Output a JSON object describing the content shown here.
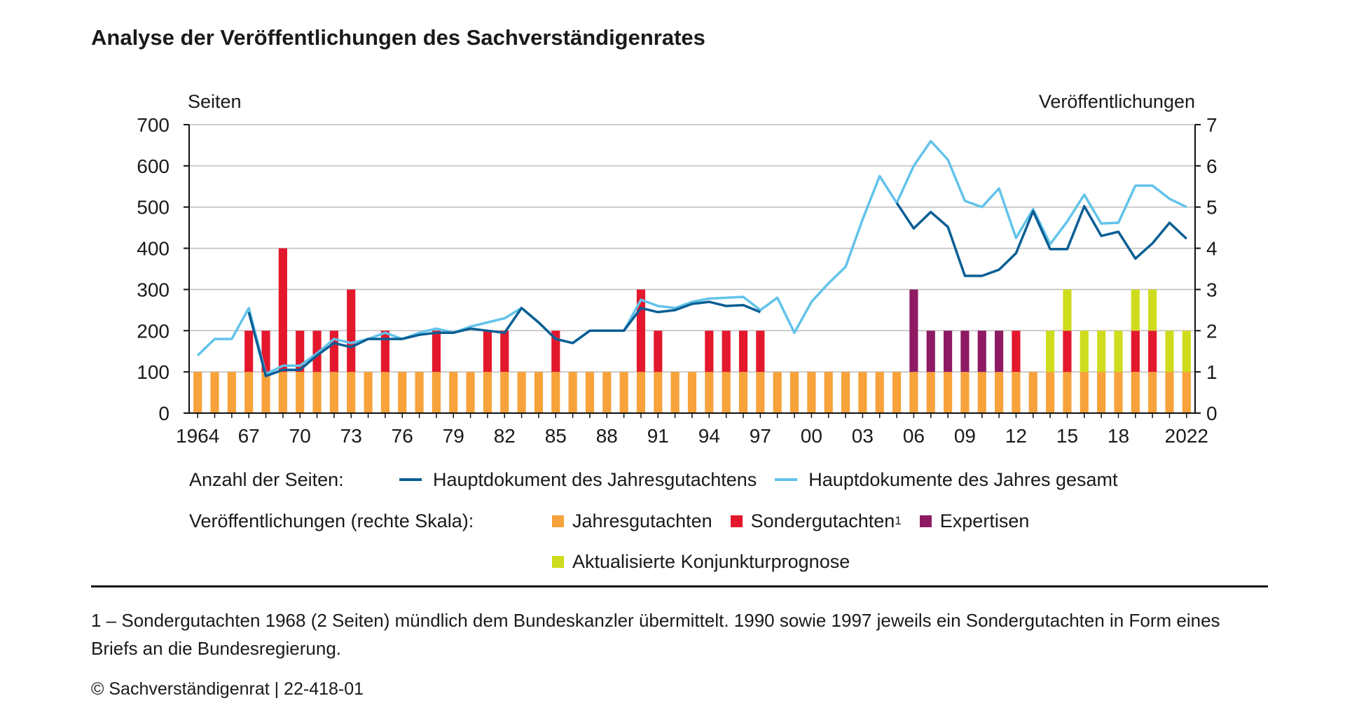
{
  "title": "Analyse der Veröffentlichungen des Sachverständigenrates",
  "chart_data": {
    "type": "bar+line",
    "title": "Analyse der Veröffentlichungen des Sachverständigenrates",
    "ylabel_left": "Seiten",
    "ylabel_right": "Veröffentlichungen",
    "ylim_left": [
      0,
      700
    ],
    "ylim_right": [
      0,
      7
    ],
    "yticks_left": [
      "0",
      "100",
      "200",
      "300",
      "400",
      "500",
      "600",
      "700"
    ],
    "yticks_right": [
      "0",
      "1",
      "2",
      "3",
      "4",
      "5",
      "6",
      "7"
    ],
    "grid": true,
    "x": [
      1964,
      1965,
      1966,
      1967,
      1968,
      1969,
      1970,
      1971,
      1972,
      1973,
      1974,
      1975,
      1976,
      1977,
      1978,
      1979,
      1980,
      1981,
      1982,
      1983,
      1984,
      1985,
      1986,
      1987,
      1988,
      1989,
      1990,
      1991,
      1992,
      1993,
      1994,
      1995,
      1996,
      1997,
      1998,
      1999,
      2000,
      2001,
      2002,
      2003,
      2004,
      2005,
      2006,
      2007,
      2008,
      2009,
      2010,
      2011,
      2012,
      2013,
      2014,
      2015,
      2016,
      2017,
      2018,
      2019,
      2020,
      2021,
      2022
    ],
    "xtick_labels": [
      {
        "year": 1964,
        "label": "1964"
      },
      {
        "year": 1967,
        "label": "67"
      },
      {
        "year": 1970,
        "label": "70"
      },
      {
        "year": 1973,
        "label": "73"
      },
      {
        "year": 1976,
        "label": "76"
      },
      {
        "year": 1979,
        "label": "79"
      },
      {
        "year": 1982,
        "label": "82"
      },
      {
        "year": 1985,
        "label": "85"
      },
      {
        "year": 1988,
        "label": "88"
      },
      {
        "year": 1991,
        "label": "91"
      },
      {
        "year": 1994,
        "label": "94"
      },
      {
        "year": 1997,
        "label": "97"
      },
      {
        "year": 2000,
        "label": "00"
      },
      {
        "year": 2003,
        "label": "03"
      },
      {
        "year": 2006,
        "label": "06"
      },
      {
        "year": 2009,
        "label": "09"
      },
      {
        "year": 2012,
        "label": "12"
      },
      {
        "year": 2015,
        "label": "15"
      },
      {
        "year": 2018,
        "label": "18"
      },
      {
        "year": 2022,
        "label": "2022"
      }
    ],
    "bar_series": [
      {
        "name": "Jahresgutachten",
        "color": "#f7a23b",
        "axis": "right",
        "values": [
          1,
          1,
          1,
          1,
          1,
          1,
          1,
          1,
          1,
          1,
          1,
          1,
          1,
          1,
          1,
          1,
          1,
          1,
          1,
          1,
          1,
          1,
          1,
          1,
          1,
          1,
          1,
          1,
          1,
          1,
          1,
          1,
          1,
          1,
          1,
          1,
          1,
          1,
          1,
          1,
          1,
          1,
          1,
          1,
          1,
          1,
          1,
          1,
          1,
          1,
          1,
          1,
          1,
          1,
          1,
          1,
          1,
          1,
          1
        ]
      },
      {
        "name": "Sondergutachten",
        "color": "#e3182d",
        "axis": "right",
        "values": [
          0,
          0,
          0,
          1,
          1,
          3,
          1,
          1,
          1,
          2,
          0,
          1,
          0,
          0,
          1,
          0,
          0,
          1,
          1,
          0,
          0,
          1,
          0,
          0,
          0,
          0,
          2,
          1,
          0,
          0,
          1,
          1,
          1,
          1,
          0,
          0,
          0,
          0,
          0,
          0,
          0,
          0,
          0,
          0,
          0,
          0,
          0,
          0,
          1,
          0,
          0,
          1,
          0,
          0,
          0,
          1,
          1,
          0,
          0
        ]
      },
      {
        "name": "Expertisen",
        "color": "#8e1a64",
        "axis": "right",
        "values": [
          0,
          0,
          0,
          0,
          0,
          0,
          0,
          0,
          0,
          0,
          0,
          0,
          0,
          0,
          0,
          0,
          0,
          0,
          0,
          0,
          0,
          0,
          0,
          0,
          0,
          0,
          0,
          0,
          0,
          0,
          0,
          0,
          0,
          0,
          0,
          0,
          0,
          0,
          0,
          0,
          0,
          0,
          2,
          1,
          1,
          1,
          1,
          1,
          0,
          0,
          0,
          0,
          0,
          0,
          0,
          0,
          0,
          0,
          0
        ]
      },
      {
        "name": "Aktualisierte Konjunkturprognose",
        "color": "#cfdc1e",
        "axis": "right",
        "values": [
          0,
          0,
          0,
          0,
          0,
          0,
          0,
          0,
          0,
          0,
          0,
          0,
          0,
          0,
          0,
          0,
          0,
          0,
          0,
          0,
          0,
          0,
          0,
          0,
          0,
          0,
          0,
          0,
          0,
          0,
          0,
          0,
          0,
          0,
          0,
          0,
          0,
          0,
          0,
          0,
          0,
          0,
          0,
          0,
          0,
          0,
          0,
          0,
          0,
          0,
          1,
          1,
          1,
          1,
          1,
          1,
          1,
          1,
          1
        ]
      }
    ],
    "line_series": [
      {
        "name": "Hauptdokument des Jahresgutachtens",
        "color": "#0a5e94",
        "axis": "left",
        "values": [
          null,
          null,
          null,
          245,
          90,
          105,
          105,
          140,
          170,
          160,
          180,
          180,
          180,
          190,
          195,
          195,
          205,
          200,
          195,
          255,
          220,
          180,
          170,
          200,
          200,
          200,
          255,
          245,
          250,
          265,
          270,
          260,
          262,
          245,
          null,
          null,
          null,
          null,
          null,
          null,
          null,
          510,
          448,
          488,
          452,
          333,
          333,
          348,
          388,
          490,
          398,
          398,
          502,
          430,
          440,
          375,
          412,
          462,
          423
        ]
      },
      {
        "name": "Hauptdokumente des Jahres gesamt",
        "color": "#62c3ea",
        "axis": "left",
        "values": [
          140,
          180,
          180,
          255,
          95,
          115,
          115,
          145,
          180,
          170,
          180,
          195,
          180,
          195,
          205,
          195,
          210,
          220,
          230,
          255,
          220,
          180,
          170,
          200,
          200,
          200,
          275,
          260,
          255,
          270,
          278,
          280,
          282,
          250,
          280,
          195,
          270,
          315,
          355,
          470,
          575,
          510,
          600,
          660,
          615,
          515,
          500,
          545,
          425,
          495,
          410,
          465,
          530,
          460,
          462,
          552,
          552,
          520,
          500
        ]
      }
    ]
  },
  "legend": {
    "lines_label": "Anzahl der Seiten:",
    "bars_label": "Veröffentlichungen (rechte Skala):",
    "items": [
      {
        "label": "Hauptdokument des Jahresgutachtens",
        "color": "#0a5e94"
      },
      {
        "label": "Hauptdokumente des Jahres gesamt",
        "color": "#62c3ea"
      },
      {
        "label": "Jahresgutachten",
        "color": "#f7a23b"
      },
      {
        "label": "Sondergutachten",
        "sup": "1",
        "color": "#e3182d"
      },
      {
        "label": "Expertisen",
        "color": "#8e1a64"
      },
      {
        "label": "Aktualisierte Konjunkturprognose",
        "color": "#cfdc1e"
      }
    ]
  },
  "footnote": "1 – Sondergutachten 1968 (2 Seiten) mündlich dem Bundeskanzler übermittelt. 1990 sowie 1997 jeweils ein Sondergutachten in Form eines Briefs an die Bundesregierung.",
  "copyright": "© Sachverständigenrat | 22-418-01"
}
